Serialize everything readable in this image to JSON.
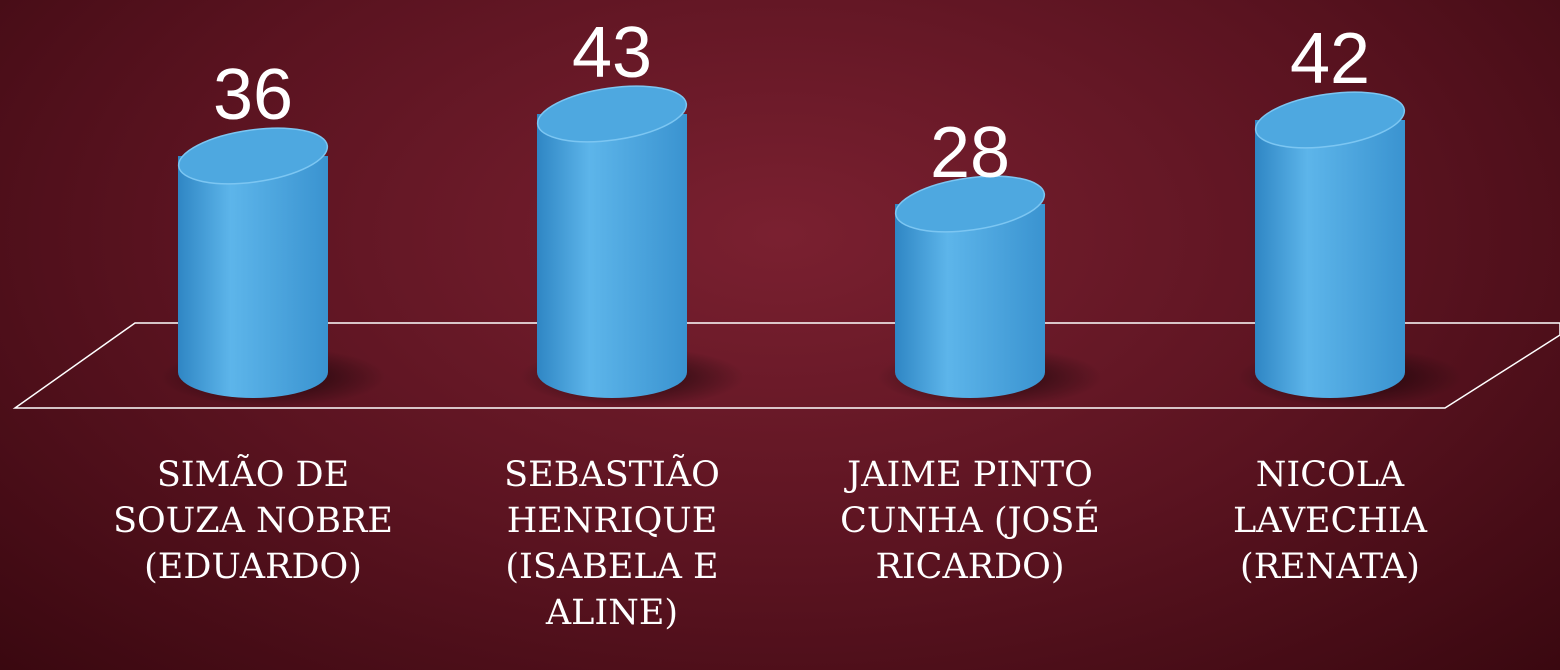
{
  "chart_data": {
    "type": "cylinder",
    "categories": [
      "SIMÃO DE SOUZA NOBRE (EDUARDO)",
      "SEBASTIÃO HENRIQUE (ISABELA E ALINE)",
      "JAIME PINTO CUNHA (JOSÉ RICARDO)",
      "NICOLA LAVECHIA (RENATA)"
    ],
    "values": [
      36,
      43,
      28,
      42
    ],
    "color": "#4ea8e0"
  }
}
